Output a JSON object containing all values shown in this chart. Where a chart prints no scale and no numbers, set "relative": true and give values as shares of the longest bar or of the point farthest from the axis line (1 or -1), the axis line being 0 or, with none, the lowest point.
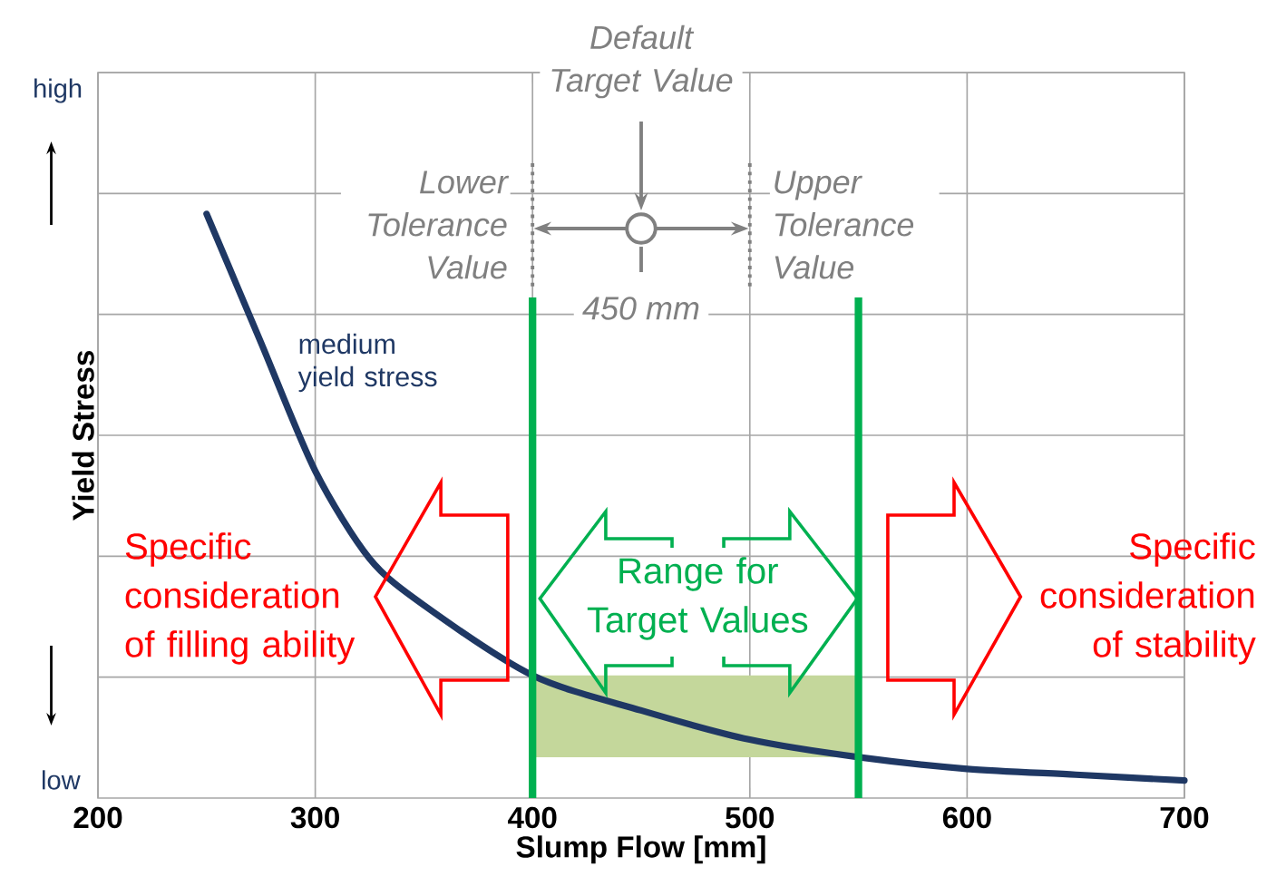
{
  "chart_data": {
    "type": "line",
    "xlabel": "Slump Flow [mm]",
    "ylabel": "Yield Stress",
    "relative": true,
    "xlim": [
      200,
      700
    ],
    "xticks": [
      200,
      300,
      400,
      500,
      600,
      700
    ],
    "grid": true,
    "marker": "none",
    "line_style": "solid",
    "series": [
      {
        "name": "medium yield stress",
        "color": "#1f3864",
        "x": [
          250,
          275,
          300,
          325,
          350,
          400,
          450,
          500,
          550,
          600,
          650,
          700
        ],
        "values": [
          1,
          0.78,
          0.56,
          0.41,
          0.33,
          0.21,
          0.15,
          0.1,
          0.07,
          0.05,
          0.04,
          0.03
        ]
      }
    ],
    "bands": [
      {
        "axis": "x",
        "from": 400,
        "to": 550,
        "color": "#c4d79b"
      }
    ],
    "ref_lines": [
      {
        "axis": "x",
        "value": 400,
        "label": "Lower Tolerance Value",
        "color": "#00b050"
      },
      {
        "axis": "x",
        "value": 550,
        "label": "Upper Tolerance Value",
        "color": "#00b050"
      }
    ],
    "annotations": [
      "Default Target Value",
      "450 mm",
      "Specific consideration of filling ability",
      "Range for Target Values",
      "Specific consideration of stability",
      "high",
      "low"
    ]
  }
}
